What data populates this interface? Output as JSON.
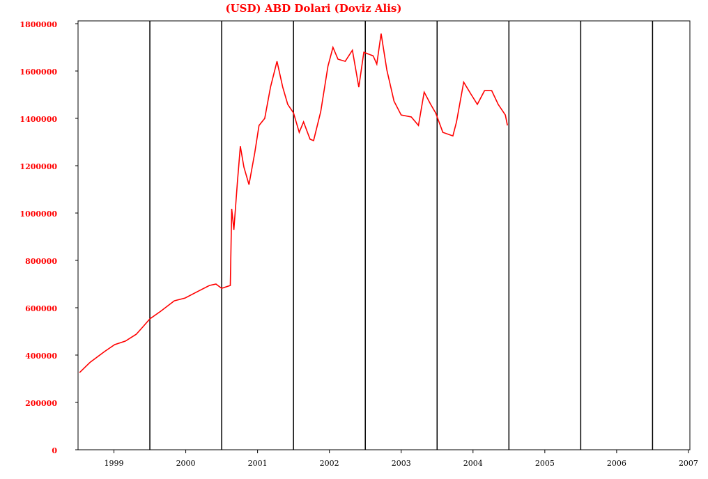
{
  "chart_data": {
    "type": "line",
    "title": "(USD) ABD Dolari  (Doviz Alis)",
    "xlim": [
      1999,
      2007.52
    ],
    "xticks": [
      {
        "value": 1999.5,
        "label": "1999"
      },
      {
        "value": 2000.5,
        "label": "2000"
      },
      {
        "value": 2001.5,
        "label": "2001"
      },
      {
        "value": 2002.5,
        "label": "2002"
      },
      {
        "value": 2003.5,
        "label": "2003"
      },
      {
        "value": 2004.5,
        "label": "2004"
      },
      {
        "value": 2005.5,
        "label": "2005"
      },
      {
        "value": 2006.5,
        "label": "2006"
      },
      {
        "value": 2007.5,
        "label": "2007"
      }
    ],
    "xgrid": [
      2000,
      2001,
      2002,
      2003,
      2004,
      2005,
      2006,
      2007
    ],
    "ylim": [
      0,
      1800000
    ],
    "yticks": [
      0,
      200000,
      400000,
      600000,
      800000,
      1000000,
      1200000,
      1400000,
      1600000,
      1800000
    ],
    "series": [
      {
        "color": "#ff0000",
        "x": [
          1999.02,
          1999.17,
          1999.37,
          1999.51,
          1999.66,
          1999.81,
          1999.9,
          2000.0,
          2000.15,
          2000.34,
          2000.49,
          2000.68,
          2000.83,
          2000.92,
          2001.0,
          2001.12,
          2001.14,
          2001.17,
          2001.22,
          2001.26,
          2001.31,
          2001.38,
          2001.46,
          2001.52,
          2001.6,
          2001.68,
          2001.77,
          2001.85,
          2001.92,
          2002.0,
          2002.08,
          2002.14,
          2002.23,
          2002.28,
          2002.38,
          2002.48,
          2002.55,
          2002.62,
          2002.72,
          2002.82,
          2002.91,
          2002.98,
          2003.11,
          2003.16,
          2003.22,
          2003.3,
          2003.4,
          2003.5,
          2003.64,
          2003.74,
          2003.82,
          2003.91,
          2003.98,
          2004.08,
          2004.22,
          2004.27,
          2004.37,
          2004.47,
          2004.56,
          2004.66,
          2004.76,
          2004.85,
          2004.95,
          2004.98
        ],
        "values": [
          326000,
          370000,
          415000,
          444000,
          459000,
          488000,
          518000,
          553000,
          585000,
          629000,
          641000,
          671000,
          694000,
          700000,
          682000,
          694000,
          1018000,
          929000,
          1135000,
          1282000,
          1194000,
          1120000,
          1253000,
          1370000,
          1400000,
          1532000,
          1641000,
          1532000,
          1459000,
          1423000,
          1341000,
          1385000,
          1312000,
          1306000,
          1429000,
          1620000,
          1700000,
          1650000,
          1641000,
          1688000,
          1532000,
          1679000,
          1664000,
          1629000,
          1758000,
          1605000,
          1473000,
          1414000,
          1406000,
          1370000,
          1511000,
          1459000,
          1423000,
          1341000,
          1326000,
          1385000,
          1553000,
          1503000,
          1459000,
          1517000,
          1517000,
          1459000,
          1414000,
          1370000
        ]
      }
    ]
  }
}
